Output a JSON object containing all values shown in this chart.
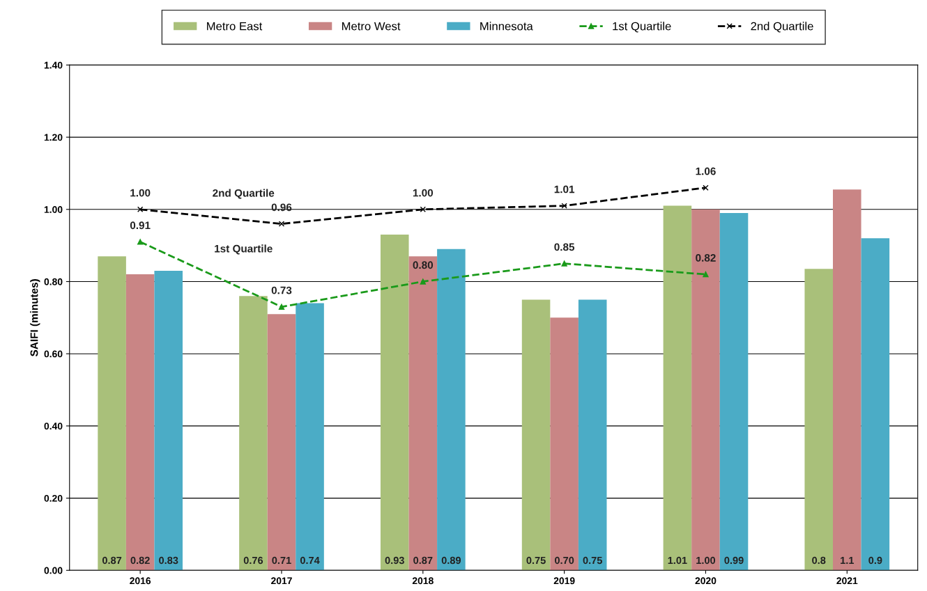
{
  "chart_data": {
    "type": "bar",
    "ylabel": "SAIFI (minutes)",
    "categories": [
      "2016",
      "2017",
      "2018",
      "2019",
      "2020",
      "2021"
    ],
    "series": [
      {
        "name": "Metro East",
        "color": "#a9c07a",
        "values": [
          0.87,
          0.76,
          0.93,
          0.75,
          1.01,
          0.835
        ],
        "value_labels": [
          "0.87",
          "0.76",
          "0.93",
          "0.75",
          "1.01",
          "0.8"
        ]
      },
      {
        "name": "Metro West",
        "color": "#c98585",
        "values": [
          0.82,
          0.71,
          0.87,
          0.7,
          1.0,
          1.055
        ],
        "value_labels": [
          "0.82",
          "0.71",
          "0.87",
          "0.70",
          "1.00",
          "1.1"
        ]
      },
      {
        "name": "Minnesota",
        "color": "#4bacc6",
        "values": [
          0.83,
          0.74,
          0.89,
          0.75,
          0.99,
          0.92
        ],
        "value_labels": [
          "0.83",
          "0.74",
          "0.89",
          "0.75",
          "0.99",
          "0.9"
        ]
      },
      {
        "name": "1st Quartile",
        "type": "line",
        "color": "#1a9a1a",
        "marker": "triangle",
        "line_style": "dashed",
        "values": [
          0.91,
          0.73,
          0.8,
          0.85,
          0.82,
          null
        ],
        "value_labels": [
          "0.91",
          "0.73",
          "0.80",
          "0.85",
          "0.82",
          null
        ]
      },
      {
        "name": "2nd Quartile",
        "type": "line",
        "color": "#000000",
        "marker": "cross",
        "line_style": "dashed",
        "values": [
          1.0,
          0.96,
          1.0,
          1.01,
          1.06,
          null
        ],
        "value_labels": [
          "1.00",
          "0.96",
          "1.00",
          "1.01",
          "1.06",
          null
        ]
      }
    ],
    "annotations": [
      "2nd Quartile",
      "1st Quartile"
    ],
    "ylim": [
      0,
      1.4
    ],
    "yticks": [
      {
        "value": 0,
        "label": "0.00"
      },
      {
        "value": 0.2,
        "label": "0.20"
      },
      {
        "value": 0.4,
        "label": "0.40"
      },
      {
        "value": 0.6,
        "label": "0.60"
      },
      {
        "value": 0.8,
        "label": "0.80"
      },
      {
        "value": 1.0,
        "label": "1.00"
      },
      {
        "value": 1.2,
        "label": "1.20"
      },
      {
        "value": 1.4,
        "label": "1.40"
      }
    ],
    "grid": "y",
    "legend": "top"
  }
}
